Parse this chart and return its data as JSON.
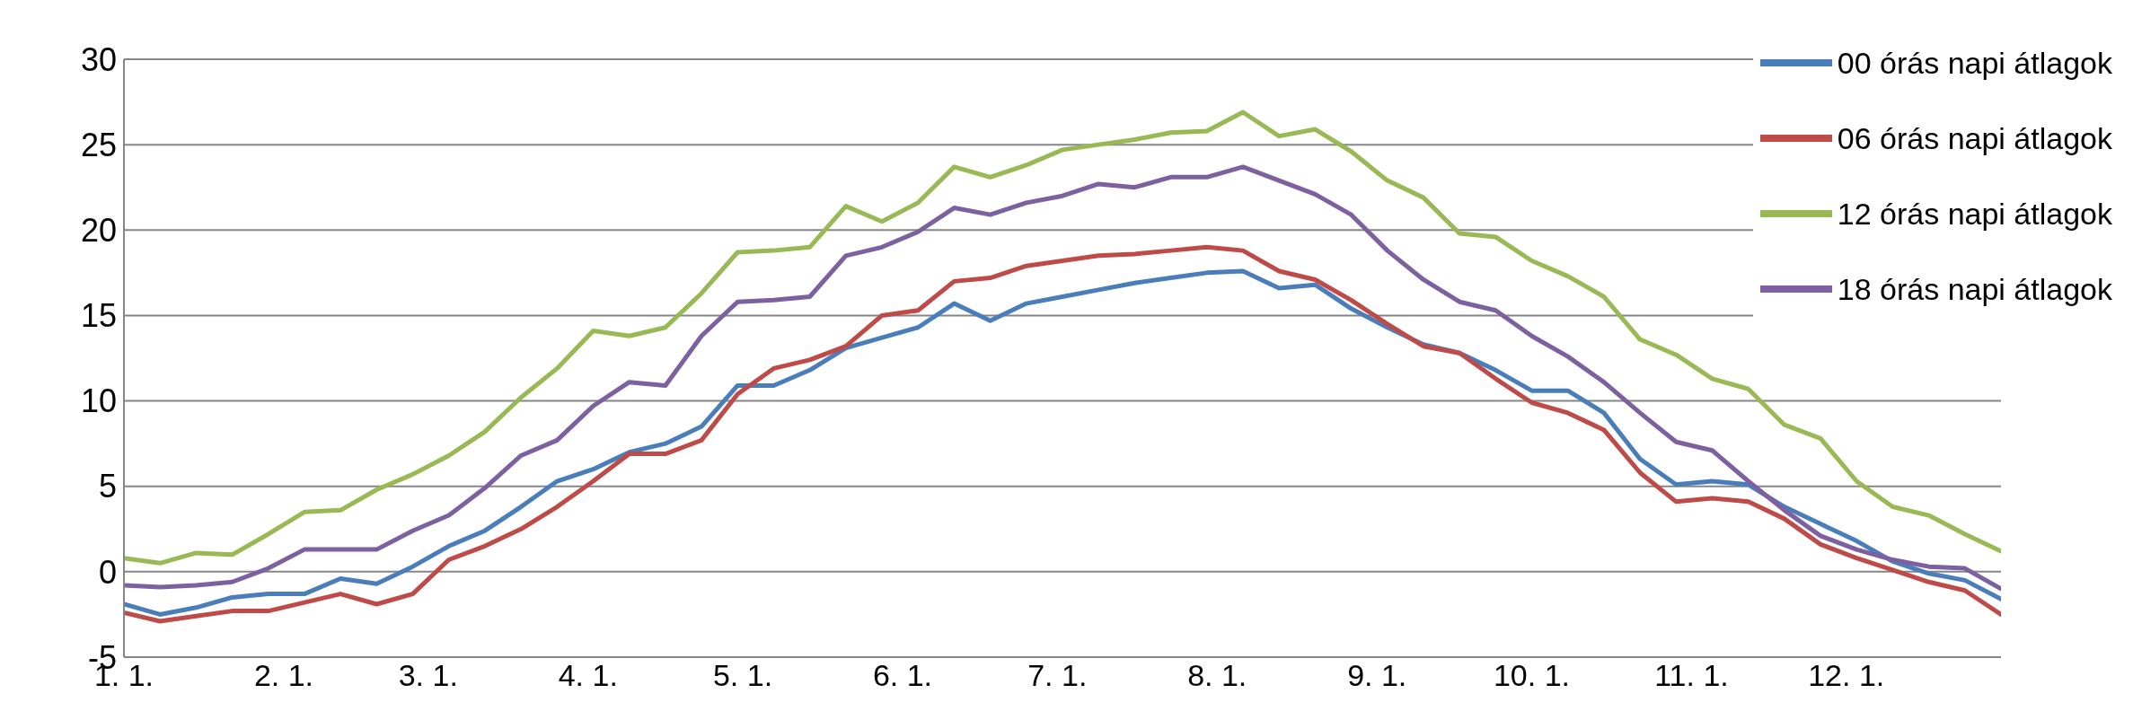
{
  "chart_data": {
    "type": "line",
    "x": [
      "--01-01",
      "--01-08",
      "--01-15",
      "--01-22",
      "--01-29",
      "--02-05",
      "--02-12",
      "--02-19",
      "--02-26",
      "--03-05",
      "--03-12",
      "--03-19",
      "--03-26",
      "--04-02",
      "--04-09",
      "--04-16",
      "--04-23",
      "--04-30",
      "--05-07",
      "--05-14",
      "--05-21",
      "--05-28",
      "--06-04",
      "--06-11",
      "--06-18",
      "--06-25",
      "--07-02",
      "--07-09",
      "--07-16",
      "--07-23",
      "--07-30",
      "--08-06",
      "--08-13",
      "--08-20",
      "--08-27",
      "--09-03",
      "--09-10",
      "--09-17",
      "--09-24",
      "--10-01",
      "--10-08",
      "--10-15",
      "--10-22",
      "--10-29",
      "--11-05",
      "--11-12",
      "--11-19",
      "--11-26",
      "--12-03",
      "--12-10",
      "--12-17",
      "--12-24",
      "--12-31"
    ],
    "series": [
      {
        "name": "00 órás napi átlagok",
        "color": "#4a7ebb",
        "values": [
          -1.9,
          -2.5,
          -2.1,
          -1.5,
          -1.3,
          -1.3,
          -0.4,
          -0.7,
          0.3,
          1.5,
          2.4,
          3.8,
          5.3,
          6.0,
          7.0,
          7.5,
          8.5,
          10.9,
          10.9,
          11.8,
          13.1,
          13.7,
          14.3,
          15.7,
          14.7,
          15.7,
          16.1,
          16.5,
          16.9,
          17.2,
          17.5,
          17.6,
          16.6,
          16.8,
          15.4,
          14.3,
          13.3,
          12.8,
          11.8,
          10.6,
          10.6,
          9.3,
          6.6,
          5.1,
          5.3,
          5.1,
          3.8,
          2.8,
          1.8,
          0.6,
          -0.1,
          -0.5,
          -1.6
        ]
      },
      {
        "name": "06 órás napi átlagok",
        "color": "#be4b48",
        "values": [
          -2.4,
          -2.9,
          -2.6,
          -2.3,
          -2.3,
          -1.8,
          -1.3,
          -1.9,
          -1.3,
          0.7,
          1.5,
          2.5,
          3.8,
          5.3,
          6.9,
          6.9,
          7.7,
          10.4,
          11.9,
          12.4,
          13.2,
          15.0,
          15.3,
          17.0,
          17.2,
          17.9,
          18.2,
          18.5,
          18.6,
          18.8,
          19.0,
          18.8,
          17.6,
          17.1,
          15.9,
          14.5,
          13.2,
          12.8,
          11.3,
          9.9,
          9.3,
          8.3,
          5.8,
          4.1,
          4.3,
          4.1,
          3.1,
          1.6,
          0.8,
          0.1,
          -0.6,
          -1.1,
          -2.5
        ]
      },
      {
        "name": "12 órás napi átlagok",
        "color": "#98b954",
        "values": [
          0.8,
          0.5,
          1.1,
          1.0,
          2.2,
          3.5,
          3.6,
          4.8,
          5.7,
          6.8,
          8.2,
          10.2,
          11.9,
          14.1,
          13.8,
          14.3,
          16.3,
          18.7,
          18.8,
          19.0,
          21.4,
          20.5,
          21.6,
          23.7,
          23.1,
          23.8,
          24.7,
          25.0,
          25.3,
          25.7,
          25.8,
          26.9,
          25.5,
          25.9,
          24.6,
          22.9,
          21.9,
          19.8,
          19.6,
          18.2,
          17.3,
          16.1,
          13.6,
          12.7,
          11.3,
          10.7,
          8.6,
          7.8,
          5.3,
          3.8,
          3.3,
          2.2,
          1.2
        ]
      },
      {
        "name": "18 órás napi átlagok",
        "color": "#7d60a0",
        "values": [
          -0.8,
          -0.9,
          -0.8,
          -0.6,
          0.2,
          1.3,
          1.3,
          1.3,
          2.4,
          3.3,
          4.9,
          6.8,
          7.7,
          9.7,
          11.1,
          10.9,
          13.8,
          15.8,
          15.9,
          16.1,
          18.5,
          19.0,
          19.9,
          21.3,
          20.9,
          21.6,
          22.0,
          22.7,
          22.5,
          23.1,
          23.1,
          23.7,
          22.9,
          22.1,
          20.9,
          18.8,
          17.1,
          15.8,
          15.3,
          13.8,
          12.6,
          11.1,
          9.3,
          7.6,
          7.1,
          5.3,
          3.6,
          2.1,
          1.3,
          0.7,
          0.3,
          0.2,
          -1.0
        ]
      }
    ],
    "xlim": [
      "--01-01",
      "--12-31"
    ],
    "xticks": [
      {
        "value": "--01-01",
        "label": "1. 1."
      },
      {
        "value": "--02-01",
        "label": "2. 1."
      },
      {
        "value": "--03-01",
        "label": "3. 1."
      },
      {
        "value": "--04-01",
        "label": "4. 1."
      },
      {
        "value": "--05-01",
        "label": "5. 1."
      },
      {
        "value": "--06-01",
        "label": "6. 1."
      },
      {
        "value": "--07-01",
        "label": "7. 1."
      },
      {
        "value": "--08-01",
        "label": "8. 1."
      },
      {
        "value": "--09-01",
        "label": "9. 1."
      },
      {
        "value": "--10-01",
        "label": "10. 1."
      },
      {
        "value": "--11-01",
        "label": "11. 1."
      },
      {
        "value": "--12-01",
        "label": "12. 1."
      }
    ],
    "ylim": [
      -5,
      30
    ],
    "yticks": [
      -5,
      0,
      5,
      10,
      15,
      20,
      25,
      30
    ],
    "grid": "y",
    "legend": "top right",
    "marker": "none",
    "line_style": "solid"
  }
}
